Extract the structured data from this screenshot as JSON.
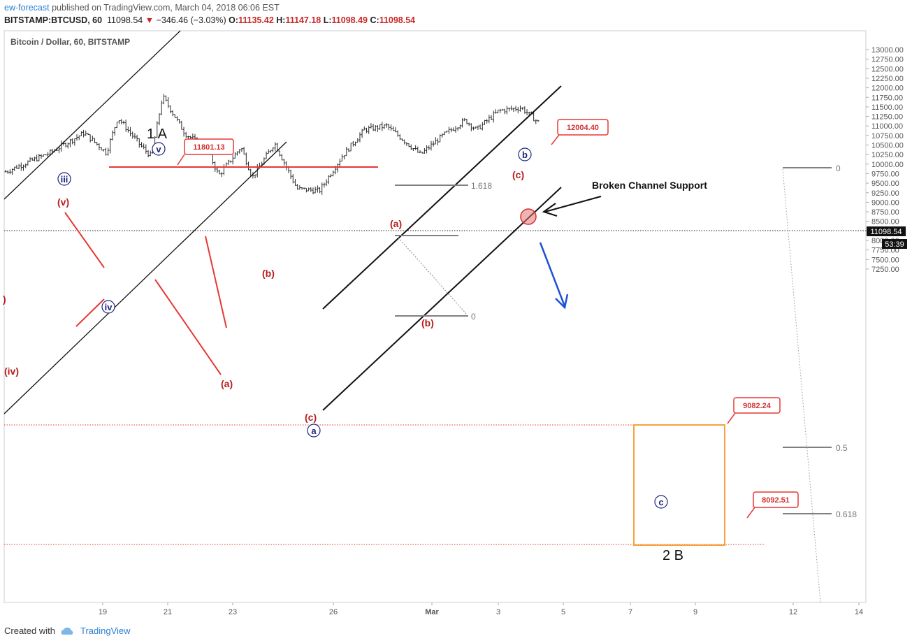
{
  "header": {
    "user": "ew-forecast",
    "published": " published on TradingView.com, March 04, 2018 06:06 EST",
    "symbol": "BITSTAMP:BTCUSD, 60",
    "last": "11098.54",
    "arrow": "▼",
    "change": "−346.46 (−3.03%)",
    "o_label": "O:",
    "o": "11135.42",
    "h_label": "H:",
    "h": "11147.18",
    "l_label": "L:",
    "l": "11098.49",
    "c_label": "C:",
    "c": "11098.54"
  },
  "footer": {
    "created": "Created with",
    "brand": "TradingView"
  },
  "colors": {
    "up": "#2b2b2b",
    "wave_red": "#b71c1c",
    "wave_blue": "#1a237e",
    "line_red": "#e53935",
    "arrow_blue": "#1e4fd6",
    "target_box": "#f7a23b",
    "fib_gray": "#808080"
  },
  "chart_data": {
    "type": "line",
    "title": "Bitcoin / Dollar, 60, BITSTAMP",
    "x_ticks": [
      "19",
      "21",
      "23",
      "26",
      "Mar",
      "3",
      "5",
      "7",
      "9",
      "12",
      "14"
    ],
    "y_ticks": [
      "13000.00",
      "12750.00",
      "12500.00",
      "12250.00",
      "12000.00",
      "11750.00",
      "11500.00",
      "11250.00",
      "11000.00",
      "10750.00",
      "10500.00",
      "10250.00",
      "10000.00",
      "9750.00",
      "9500.00",
      "9250.00",
      "9000.00",
      "8750.00",
      "8500.00",
      "8250.00",
      "8000.00",
      "7750.00",
      "7500.00",
      "7250.00"
    ],
    "ylim": [
      7150,
      13200
    ],
    "current_price": "11098.54",
    "countdown": "53:39",
    "price_path": [
      [
        0,
        9800
      ],
      [
        8,
        10300
      ],
      [
        14,
        10820
      ],
      [
        18,
        10300
      ],
      [
        20,
        11220
      ],
      [
        24,
        10500
      ],
      [
        26,
        10200
      ],
      [
        28,
        11780
      ],
      [
        32,
        10800
      ],
      [
        36,
        10400
      ],
      [
        38,
        9700
      ],
      [
        42,
        10450
      ],
      [
        44,
        9650
      ],
      [
        48,
        10550
      ],
      [
        52,
        9350
      ],
      [
        56,
        9300
      ],
      [
        60,
        10200
      ],
      [
        64,
        10900
      ],
      [
        68,
        11000
      ],
      [
        72,
        10500
      ],
      [
        74,
        10250
      ],
      [
        78,
        10750
      ],
      [
        82,
        11150
      ],
      [
        84,
        10900
      ],
      [
        88,
        11400
      ],
      [
        92,
        11480
      ],
      [
        95,
        11100
      ]
    ],
    "levels": [
      {
        "label": "11801.13",
        "value": 11801.13
      },
      {
        "label": "12004.40",
        "value": 12004.4
      },
      {
        "label": "9082.24",
        "value": 9082.24
      },
      {
        "label": "8092.51",
        "value": 8092.51
      }
    ],
    "fib_left": [
      {
        "label": "1.618",
        "value": 11580
      },
      {
        "label": "0",
        "value": 10220
      }
    ],
    "fib_right": [
      {
        "label": "0",
        "value": 11760
      },
      {
        "label": "0.5",
        "value": 8830
      },
      {
        "label": "0.618",
        "value": 8140
      }
    ],
    "wave_labels_red": [
      "(iv)",
      "(v)",
      "(a)",
      "(b)",
      "(c)",
      "(a)",
      "(b)",
      "(c)",
      ")"
    ],
    "wave_labels_circled": [
      "iii",
      "iv",
      "v",
      "a",
      "b",
      "c"
    ],
    "wave_labels_black": [
      "1 A",
      "2 B"
    ],
    "annotation": "Broken Channel Support"
  }
}
